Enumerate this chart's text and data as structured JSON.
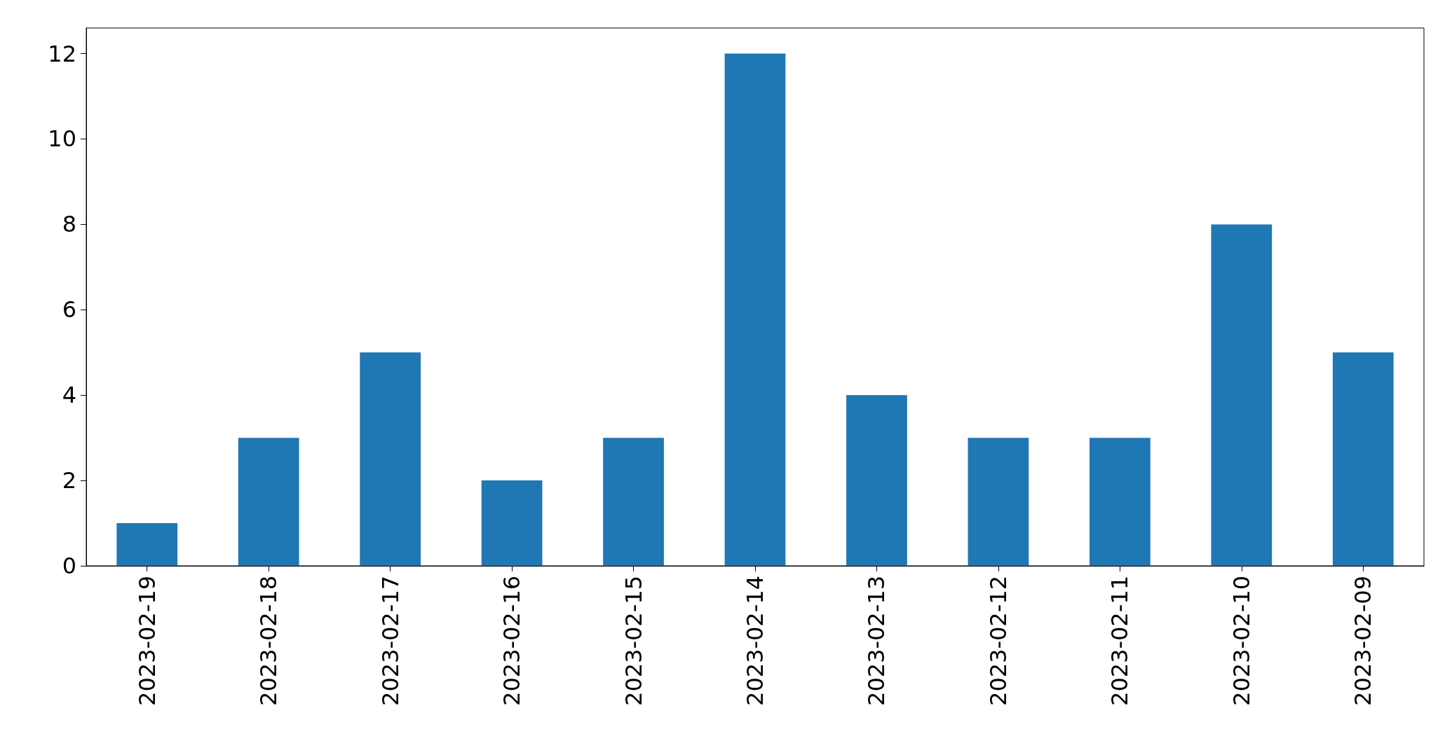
{
  "chart_data": {
    "type": "bar",
    "categories": [
      "2023-02-19",
      "2023-02-18",
      "2023-02-17",
      "2023-02-16",
      "2023-02-15",
      "2023-02-14",
      "2023-02-13",
      "2023-02-12",
      "2023-02-11",
      "2023-02-10",
      "2023-02-09"
    ],
    "values": [
      1,
      3,
      5,
      2,
      3,
      12,
      4,
      3,
      3,
      8,
      5
    ],
    "color": "#1f77b4",
    "ylim": [
      0,
      12.6
    ],
    "yticks": [
      0,
      2,
      4,
      6,
      8,
      10,
      12
    ],
    "grid": false
  }
}
